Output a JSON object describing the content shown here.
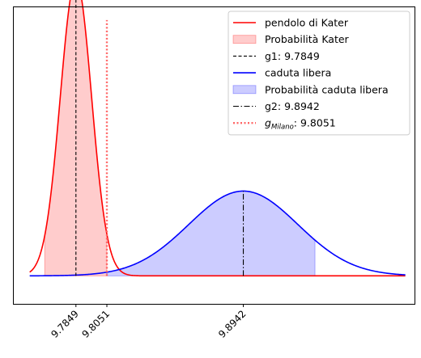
{
  "chart_data": {
    "type": "line",
    "title": "",
    "xlabel": "",
    "ylabel": "",
    "xlim": [
      9.7443,
      10.006
    ],
    "ylim": [
      -3.7,
      35.5
    ],
    "grid": false,
    "y_ticks_visible": false,
    "x_ticks": [
      {
        "value": 9.7849,
        "label": "9.7849"
      },
      {
        "value": 9.8051,
        "label": "9.8051"
      },
      {
        "value": 9.8942,
        "label": "9.8942"
      }
    ],
    "tick_label_rotation": 45,
    "legend_position": "top-right",
    "series": [
      {
        "name": "pendolo di Kater",
        "kind": "normal_curve",
        "mean": 9.7849,
        "sd": 0.0102,
        "x_range": [
          9.7547,
          10.0
        ],
        "color": "#ff0000"
      },
      {
        "name": "Probabilità Kater",
        "kind": "shaded_area",
        "of": "pendolo di Kater",
        "x_range": [
          9.7645,
          9.8051
        ],
        "color": "#ff0000",
        "opacity": 0.2
      },
      {
        "name": "g1: 9.7849",
        "kind": "vline",
        "x": 9.7849,
        "from_curve": "pendolo di Kater",
        "style": "dashed",
        "color": "#000000"
      },
      {
        "name": "caduta libera",
        "kind": "normal_curve",
        "mean": 9.8942,
        "sd": 0.0356,
        "x_range": [
          9.7547,
          10.0
        ],
        "color": "#0000ff"
      },
      {
        "name": "Probabilità caduta libera",
        "kind": "shaded_area",
        "of": "caduta libera",
        "x_range": [
          9.8051,
          9.941
        ],
        "color": "#0000ff",
        "opacity": 0.2
      },
      {
        "name": "g2: 9.8942",
        "kind": "vline",
        "x": 9.8942,
        "from_curve": "caduta libera",
        "style": "dashdot",
        "color": "#000000"
      },
      {
        "name": "g_Milano: 9.8051",
        "legend_main": "g",
        "legend_sub": "Milano",
        "legend_rest": ": 9.8051",
        "kind": "vline",
        "x": 9.8051,
        "y_range": [
          0,
          33.8
        ],
        "style": "dotted",
        "color": "#ff6666"
      }
    ]
  }
}
